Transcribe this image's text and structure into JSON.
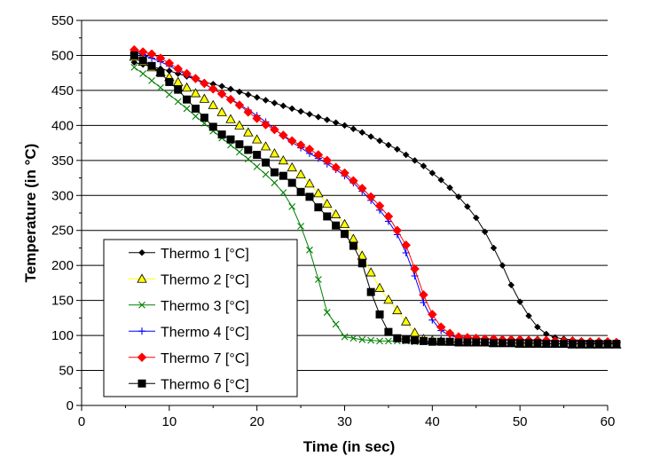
{
  "chart_data": {
    "type": "line",
    "title": "",
    "xlabel": "Time (in sec)",
    "ylabel": "Temperature (in °C)",
    "xlim": [
      0,
      60
    ],
    "ylim": [
      0,
      550
    ],
    "x_ticks": [
      0,
      10,
      20,
      30,
      40,
      50,
      60
    ],
    "y_ticks": [
      0,
      50,
      100,
      150,
      200,
      250,
      300,
      350,
      400,
      450,
      500,
      550
    ],
    "grid": "horizontal",
    "legend_position": "lower-left",
    "series": [
      {
        "name": "Thermo 1 [°C]",
        "color": "#000000",
        "marker": "diamond-small",
        "x": [
          6,
          7,
          8,
          9,
          10,
          11,
          12,
          13,
          14,
          15,
          16,
          17,
          18,
          19,
          20,
          21,
          22,
          23,
          24,
          25,
          26,
          27,
          28,
          29,
          30,
          31,
          32,
          33,
          34,
          35,
          36,
          37,
          38,
          39,
          40,
          41,
          42,
          43,
          44,
          45,
          46,
          47,
          48,
          49,
          50,
          51,
          52,
          53,
          54,
          55,
          56,
          57,
          58,
          59,
          60,
          61
        ],
        "y": [
          490,
          487,
          484,
          481,
          478,
          474,
          470,
          466,
          462,
          459,
          456,
          452,
          448,
          444,
          440,
          436,
          432,
          428,
          424,
          420,
          416,
          412,
          408,
          404,
          400,
          395,
          390,
          384,
          378,
          372,
          366,
          358,
          350,
          342,
          332,
          322,
          311,
          298,
          284,
          268,
          248,
          225,
          200,
          172,
          148,
          128,
          112,
          102,
          97,
          95,
          94,
          93,
          92,
          92,
          91,
          91
        ]
      },
      {
        "name": "Thermo 2 [°C]",
        "color": "#ffff00",
        "marker": "triangle",
        "x": [
          6,
          7,
          8,
          9,
          10,
          11,
          12,
          13,
          14,
          15,
          16,
          17,
          18,
          19,
          20,
          21,
          22,
          23,
          24,
          25,
          26,
          27,
          28,
          29,
          30,
          31,
          32,
          33,
          34,
          35,
          36,
          37,
          38,
          39,
          40,
          41,
          42,
          43,
          44,
          45,
          46,
          47,
          48,
          49,
          50,
          51,
          52,
          53,
          54,
          55,
          56,
          57,
          58,
          59,
          60,
          61
        ],
        "y": [
          498,
          491,
          483,
          476,
          469,
          462,
          454,
          446,
          438,
          429,
          419,
          409,
          400,
          390,
          380,
          370,
          360,
          350,
          340,
          330,
          317,
          303,
          288,
          273,
          259,
          238,
          214,
          190,
          168,
          151,
          136,
          120,
          104,
          95,
          93,
          92,
          91,
          91,
          90,
          90,
          90,
          89,
          89,
          89,
          88,
          88,
          88,
          88,
          88,
          88,
          87,
          87,
          87,
          87,
          87,
          87
        ]
      },
      {
        "name": "Thermo 3 [°C]",
        "color": "#008000",
        "marker": "x",
        "x": [
          6,
          7,
          8,
          9,
          10,
          11,
          12,
          13,
          14,
          15,
          16,
          17,
          18,
          19,
          20,
          21,
          22,
          23,
          24,
          25,
          26,
          27,
          28,
          29,
          30,
          31,
          32,
          33,
          34,
          35,
          36,
          37,
          38
        ],
        "y": [
          483,
          474,
          464,
          454,
          444,
          434,
          424,
          413,
          403,
          392,
          382,
          372,
          362,
          352,
          341,
          330,
          318,
          304,
          284,
          256,
          222,
          180,
          133,
          116,
          98,
          96,
          94,
          93,
          92,
          92,
          92,
          92,
          91
        ]
      },
      {
        "name": "Thermo 4 [°C]",
        "color": "#0000ff",
        "marker": "plus",
        "x": [
          6,
          7,
          8,
          9,
          10,
          11,
          12,
          13,
          14,
          15,
          16,
          17,
          18,
          19,
          20,
          21,
          22,
          23,
          24,
          25,
          26,
          27,
          28,
          29,
          30,
          31,
          32,
          33,
          34,
          35,
          36,
          37,
          38,
          39,
          40,
          41,
          42,
          43,
          44,
          45,
          46,
          47,
          48,
          49,
          50,
          51,
          52,
          53,
          54,
          55,
          56,
          57,
          58,
          59,
          60,
          61
        ],
        "y": [
          505,
          501,
          496,
          491,
          485,
          479,
          472,
          466,
          459,
          452,
          445,
          438,
          430,
          422,
          414,
          405,
          395,
          385,
          376,
          368,
          360,
          353,
          345,
          337,
          328,
          318,
          306,
          293,
          279,
          263,
          244,
          218,
          185,
          147,
          122,
          107,
          100,
          97,
          96,
          95,
          95,
          94,
          94,
          93,
          93,
          93,
          92,
          92,
          92,
          91,
          91,
          91,
          90,
          90,
          90,
          90
        ]
      },
      {
        "name": "Thermo 7 [°C]",
        "color": "#ff0000",
        "marker": "diamond",
        "x": [
          6,
          7,
          8,
          9,
          10,
          11,
          12,
          13,
          14,
          15,
          16,
          17,
          18,
          19,
          20,
          21,
          22,
          23,
          24,
          25,
          26,
          27,
          28,
          29,
          30,
          31,
          32,
          33,
          34,
          35,
          36,
          37,
          38,
          39,
          40,
          41,
          42,
          43,
          44,
          45,
          46,
          47,
          48,
          49,
          50,
          51,
          52,
          53,
          54,
          55,
          56,
          57,
          58,
          59,
          60,
          61
        ],
        "y": [
          508,
          505,
          502,
          496,
          489,
          481,
          474,
          467,
          460,
          452,
          445,
          437,
          429,
          419,
          410,
          401,
          394,
          386,
          378,
          372,
          366,
          358,
          350,
          340,
          332,
          321,
          310,
          298,
          285,
          270,
          250,
          229,
          195,
          158,
          130,
          112,
          103,
          98,
          97,
          96,
          95,
          95,
          94,
          94,
          94,
          93,
          93,
          93,
          92,
          92,
          92,
          91,
          91,
          91,
          91,
          90
        ]
      },
      {
        "name": "Thermo 6 [°C]",
        "color": "#000000",
        "marker": "square",
        "x": [
          6,
          7,
          8,
          9,
          10,
          11,
          12,
          13,
          14,
          15,
          16,
          17,
          18,
          19,
          20,
          21,
          22,
          23,
          24,
          25,
          26,
          27,
          28,
          29,
          30,
          31,
          32,
          33,
          34,
          35,
          36,
          37,
          38,
          39,
          40,
          41,
          42,
          43,
          44,
          45,
          46,
          47,
          48,
          49,
          50,
          51,
          52,
          53,
          54,
          55,
          56,
          57,
          58,
          59,
          60,
          61
        ],
        "y": [
          500,
          493,
          485,
          475,
          462,
          451,
          437,
          424,
          411,
          398,
          387,
          380,
          373,
          365,
          358,
          347,
          333,
          328,
          318,
          305,
          298,
          283,
          270,
          257,
          245,
          228,
          203,
          162,
          130,
          105,
          96,
          94,
          93,
          92,
          91,
          91,
          91,
          90,
          90,
          90,
          90,
          89,
          89,
          89,
          89,
          89,
          89,
          88,
          88,
          88,
          88,
          88,
          88,
          88,
          88,
          88
        ]
      }
    ]
  }
}
